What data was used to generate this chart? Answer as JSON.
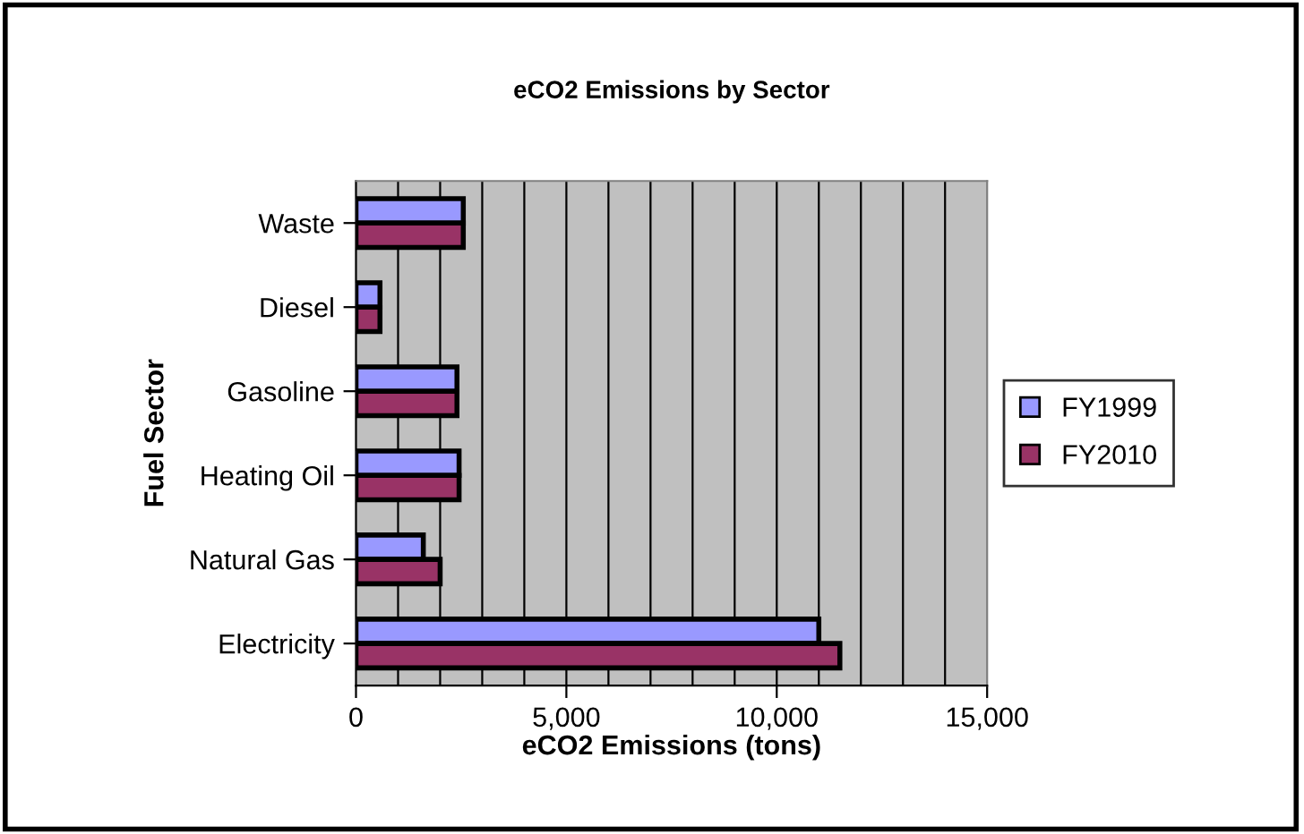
{
  "chart_data": {
    "type": "bar",
    "orientation": "horizontal",
    "title": "eCO2 Emissions by Sector",
    "xlabel": "eCO2 Emissions (tons)",
    "ylabel": "Fuel Sector",
    "categories": [
      "Waste",
      "Diesel",
      "Gasoline",
      "Heating Oil",
      "Natural Gas",
      "Electricity"
    ],
    "series": [
      {
        "name": "FY1999",
        "color": "#9999ff",
        "values": [
          2550,
          570,
          2400,
          2450,
          1600,
          11000
        ]
      },
      {
        "name": "FY2010",
        "color": "#993366",
        "values": [
          2550,
          570,
          2400,
          2450,
          2000,
          11500
        ]
      }
    ],
    "xlim": [
      0,
      15000
    ],
    "xticks": [
      {
        "value": 0,
        "label": "0"
      },
      {
        "value": 5000,
        "label": "5,000"
      },
      {
        "value": 10000,
        "label": "10,000"
      },
      {
        "value": 15000,
        "label": "15,000"
      }
    ],
    "grid": "x",
    "legend": "right"
  }
}
